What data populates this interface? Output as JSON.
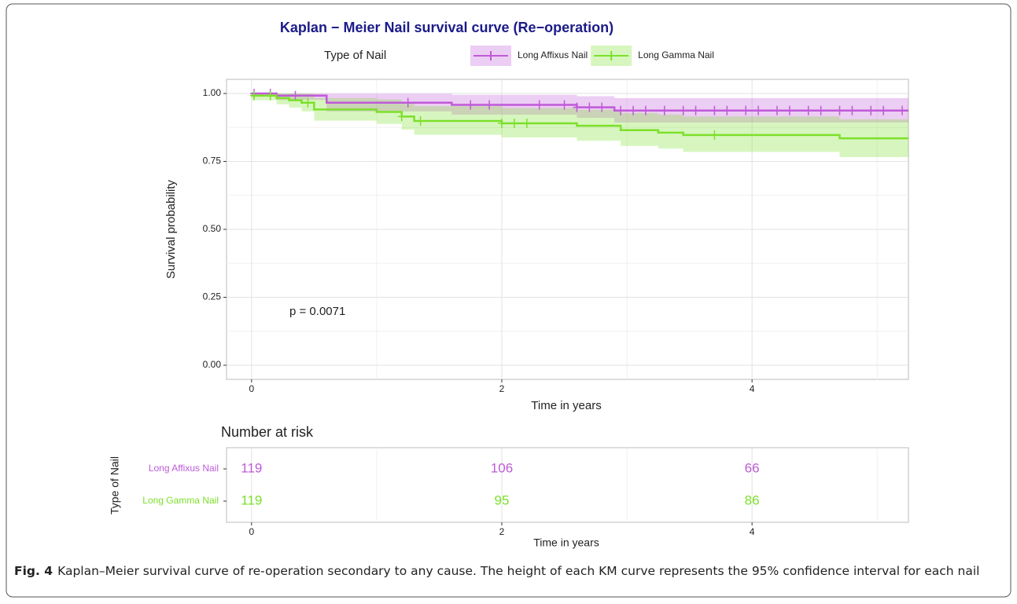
{
  "chart_data": {
    "type": "step",
    "title": "Kaplan − Meier Nail survival curve (Re−operation)",
    "legend_title": "Type of Nail",
    "xlabel": "Time in years",
    "ylabel": "Survival probability",
    "annotation": "p = 0.0071",
    "xlim": [
      -0.2,
      5.25
    ],
    "ylim": [
      -0.052,
      1.052
    ],
    "xticks": [
      0,
      2,
      4
    ],
    "xminorticks": [
      1,
      3,
      5
    ],
    "yticks": [
      {
        "value": 0,
        "label": "0.00"
      },
      0.25,
      {
        "value": 0.5,
        "label": "0.50"
      },
      0.75,
      {
        "value": 1,
        "label": "1.00"
      }
    ],
    "yminorticks": [
      0.125,
      0.375,
      0.625,
      0.875
    ],
    "grid": true,
    "series": [
      {
        "name": "Long Affixus Nail",
        "color": "#bf5ad8",
        "x": [
          0,
          0.2,
          0.6,
          1.6,
          2.6,
          2.9
        ],
        "values": [
          1.0,
          0.992,
          0.966,
          0.958,
          0.949,
          0.937
        ],
        "lower": [
          1.0,
          0.976,
          0.934,
          0.922,
          0.91,
          0.893
        ],
        "upper": [
          1.0,
          1.0,
          0.999,
          0.995,
          0.99,
          0.983
        ],
        "censored": [
          0.02,
          0.15,
          0.35,
          1.25,
          1.75,
          1.9,
          2.3,
          2.5,
          2.6,
          2.7,
          2.8,
          2.95,
          3.05,
          3.15,
          3.3,
          3.45,
          3.55,
          3.7,
          3.8,
          3.95,
          4.05,
          4.2,
          4.3,
          4.45,
          4.55,
          4.7,
          4.8,
          4.95,
          5.05,
          5.2
        ]
      },
      {
        "name": "Long Gamma Nail",
        "color": "#7ce02a",
        "x": [
          0,
          0.2,
          0.3,
          0.4,
          0.5,
          1.0,
          1.2,
          1.3,
          2.0,
          2.6,
          2.95,
          3.25,
          3.45,
          4.7
        ],
        "values": [
          0.992,
          0.983,
          0.975,
          0.966,
          0.941,
          0.932,
          0.915,
          0.899,
          0.89,
          0.881,
          0.865,
          0.856,
          0.847,
          0.835
        ],
        "lower": [
          0.975,
          0.96,
          0.948,
          0.934,
          0.9,
          0.888,
          0.867,
          0.848,
          0.838,
          0.826,
          0.807,
          0.797,
          0.785,
          0.766
        ],
        "upper": [
          1.0,
          1.0,
          1.0,
          0.999,
          0.983,
          0.978,
          0.965,
          0.953,
          0.946,
          0.94,
          0.928,
          0.922,
          0.915,
          0.905
        ],
        "censored": [
          0.02,
          0.15,
          0.45,
          1.2,
          1.35,
          2.0,
          2.1,
          2.2,
          3.7
        ]
      }
    ],
    "risk_table": {
      "title": "Number at risk",
      "ylabel": "Type of Nail",
      "times": [
        0,
        2,
        4
      ],
      "rows": [
        {
          "name": "Long Affixus Nail",
          "color": "#bf5ad8",
          "values": [
            119,
            106,
            66
          ]
        },
        {
          "name": "Long Gamma Nail",
          "color": "#7ce02a",
          "values": [
            119,
            95,
            86
          ]
        }
      ]
    }
  },
  "caption": {
    "label": "Fig. 4",
    "text": "Kaplan–Meier survival curve of re-operation secondary to any cause. The height of each KM curve represents the 95% confidence interval for each nail"
  }
}
